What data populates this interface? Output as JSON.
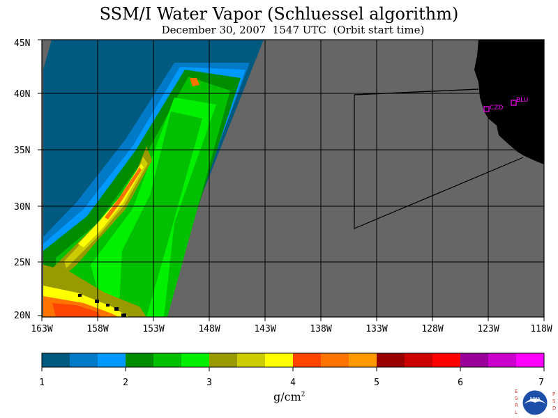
{
  "title": "SSM/I Water Vapor (Schluessel algorithm)",
  "subtitle": "December 30, 2007  1547 UTC  (Orbit start time)",
  "map": {
    "lat_labels": [
      "45N",
      "40N",
      "35N",
      "30N",
      "25N",
      "20N"
    ],
    "lon_labels": [
      "163W",
      "158W",
      "153W",
      "148W",
      "143W",
      "138W",
      "133W",
      "128W",
      "123W",
      "118W"
    ],
    "stations": [
      {
        "label": "CZD"
      },
      {
        "label": "BLU"
      }
    ],
    "colors": {
      "no_data": "#666666",
      "land": "#000000",
      "station": "#ff00ff"
    }
  },
  "colorbar": {
    "ticks": [
      "1",
      "2",
      "3",
      "4",
      "5",
      "6",
      "7"
    ],
    "units": "g/cm",
    "units_exp": "2",
    "colors": [
      "#005a80",
      "#0079c6",
      "#0099ff",
      "#008c00",
      "#00c000",
      "#00f000",
      "#999900",
      "#cccc00",
      "#ffff00",
      "#ff4500",
      "#ff7300",
      "#ff9900",
      "#990000",
      "#cc0000",
      "#ff0000",
      "#990099",
      "#cc00cc",
      "#ff00ff"
    ]
  },
  "logo": {
    "left_letters": [
      "E",
      "S",
      "R",
      "L"
    ],
    "right_letters": [
      "P",
      "S",
      "D"
    ],
    "center": "NOAA"
  }
}
